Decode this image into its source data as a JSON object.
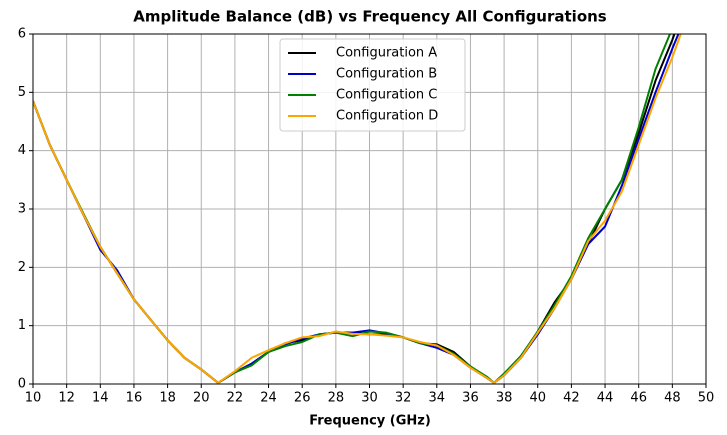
{
  "chart_data": {
    "type": "line",
    "title": "Amplitude Balance (dB) vs Frequency All Configurations",
    "x_label": "Frequency (GHz)",
    "x": [
      10,
      11,
      12,
      13,
      14,
      15,
      16,
      17,
      18,
      19,
      20,
      21,
      22,
      23,
      24,
      25,
      26,
      27,
      28,
      29,
      30,
      31,
      32,
      33,
      34,
      35,
      36,
      37,
      37.4,
      38,
      39,
      40,
      41,
      42,
      43,
      44,
      45,
      46,
      47,
      48,
      48.5
    ],
    "series": [
      {
        "name": "Configuration A",
        "color": "#000000",
        "values": [
          4.85,
          4.1,
          3.5,
          2.9,
          2.35,
          1.9,
          1.45,
          1.1,
          0.75,
          0.45,
          0.25,
          0.02,
          0.2,
          0.35,
          0.55,
          0.7,
          0.75,
          0.85,
          0.88,
          0.88,
          0.85,
          0.85,
          0.8,
          0.7,
          0.68,
          0.55,
          0.3,
          0.1,
          0.02,
          0.15,
          0.45,
          0.9,
          1.4,
          1.8,
          2.4,
          3.0,
          3.5,
          4.3,
          5.2,
          5.9,
          6.3
        ]
      },
      {
        "name": "Configuration B",
        "color": "#0000cc",
        "values": [
          4.85,
          4.1,
          3.5,
          2.9,
          2.3,
          1.95,
          1.45,
          1.1,
          0.75,
          0.45,
          0.25,
          0.02,
          0.2,
          0.35,
          0.55,
          0.68,
          0.78,
          0.85,
          0.88,
          0.88,
          0.92,
          0.87,
          0.8,
          0.7,
          0.62,
          0.5,
          0.28,
          0.1,
          0.02,
          0.15,
          0.45,
          0.85,
          1.3,
          1.8,
          2.4,
          2.7,
          3.4,
          4.2,
          5.0,
          5.75,
          6.1
        ]
      },
      {
        "name": "Configuration C",
        "color": "#008000",
        "values": [
          4.85,
          4.1,
          3.5,
          2.92,
          2.35,
          1.9,
          1.45,
          1.1,
          0.75,
          0.45,
          0.25,
          0.02,
          0.2,
          0.32,
          0.55,
          0.65,
          0.72,
          0.85,
          0.88,
          0.82,
          0.9,
          0.88,
          0.8,
          0.7,
          0.66,
          0.52,
          0.3,
          0.12,
          0.02,
          0.18,
          0.48,
          0.9,
          1.35,
          1.85,
          2.5,
          3.0,
          3.5,
          4.4,
          5.4,
          6.1,
          6.5
        ]
      },
      {
        "name": "Configuration D",
        "color": "#ffa500",
        "values": [
          4.85,
          4.1,
          3.5,
          2.9,
          2.35,
          1.9,
          1.45,
          1.1,
          0.75,
          0.45,
          0.25,
          0.02,
          0.22,
          0.45,
          0.58,
          0.7,
          0.8,
          0.82,
          0.9,
          0.86,
          0.85,
          0.83,
          0.8,
          0.72,
          0.66,
          0.5,
          0.28,
          0.1,
          0.02,
          0.15,
          0.45,
          0.88,
          1.3,
          1.8,
          2.45,
          2.8,
          3.3,
          4.1,
          4.9,
          5.6,
          6.0
        ]
      }
    ],
    "xlim": [
      10,
      50
    ],
    "xticks": [
      10,
      12,
      14,
      16,
      18,
      20,
      22,
      24,
      26,
      28,
      30,
      32,
      34,
      36,
      38,
      40,
      42,
      44,
      46,
      48,
      50
    ],
    "ylim": [
      0,
      6
    ],
    "yticks": [
      0,
      1,
      2,
      3,
      4,
      5,
      6
    ],
    "grid": true,
    "legend": "upper center"
  }
}
